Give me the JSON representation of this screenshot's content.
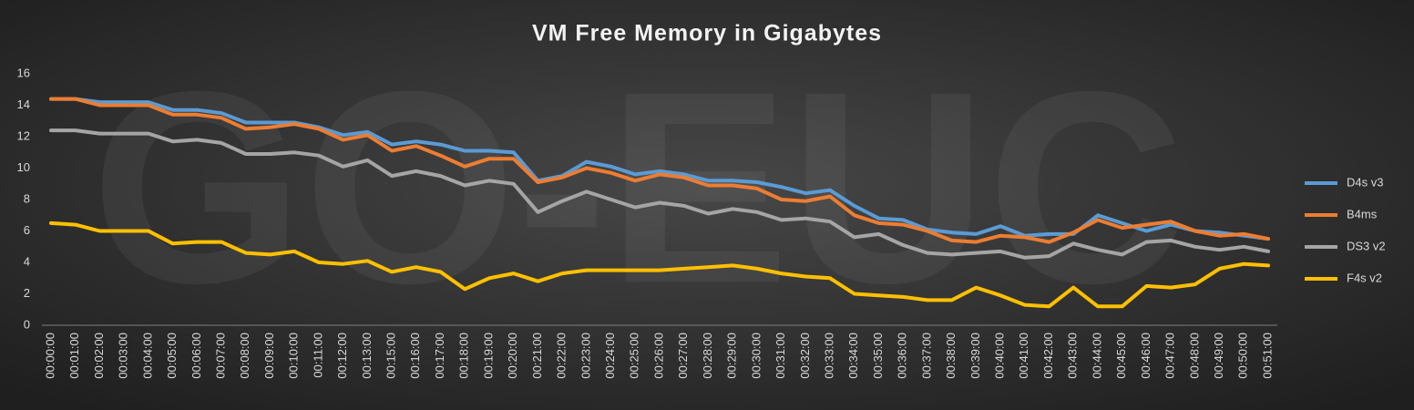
{
  "chart_data": {
    "type": "line",
    "title": "VM Free Memory in Gigabytes",
    "watermark": "GO-EUC",
    "categories": [
      "00:00:00",
      "00:01:00",
      "00:02:00",
      "00:03:00",
      "00:04:00",
      "00:05:00",
      "00:06:00",
      "00:07:00",
      "00:08:00",
      "00:09:00",
      "00:10:00",
      "00:11:00",
      "00:12:00",
      "00:13:00",
      "00:15:00",
      "00:16:00",
      "00:17:00",
      "00:18:00",
      "00:19:00",
      "00:20:00",
      "00:21:00",
      "00:22:00",
      "00:23:00",
      "00:24:00",
      "00:25:00",
      "00:26:00",
      "00:27:00",
      "00:28:00",
      "00:29:00",
      "00:30:00",
      "00:31:00",
      "00:32:00",
      "00:33:00",
      "00:34:00",
      "00:35:00",
      "00:36:00",
      "00:37:00",
      "00:38:00",
      "00:39:00",
      "00:40:00",
      "00:41:00",
      "00:42:00",
      "00:43:00",
      "00:44:00",
      "00:45:00",
      "00:46:00",
      "00:47:00",
      "00:48:00",
      "00:49:00",
      "00:50:00",
      "00:51:00"
    ],
    "series": [
      {
        "name": "D4s v3",
        "color": "#5b9bd5",
        "values": [
          14.4,
          14.4,
          14.2,
          14.2,
          14.2,
          13.7,
          13.7,
          13.5,
          12.9,
          12.9,
          12.9,
          12.6,
          12.1,
          12.3,
          11.5,
          11.7,
          11.5,
          11.1,
          11.1,
          11.0,
          9.2,
          9.5,
          10.4,
          10.1,
          9.6,
          9.8,
          9.6,
          9.2,
          9.2,
          9.1,
          8.8,
          8.4,
          8.6,
          7.6,
          6.8,
          6.7,
          6.1,
          5.9,
          5.8,
          6.3,
          5.7,
          5.8,
          5.8,
          7.0,
          6.5,
          6.0,
          6.4,
          6.0,
          5.9,
          5.7,
          5.5
        ]
      },
      {
        "name": "B4ms",
        "color": "#ed7d31",
        "values": [
          14.4,
          14.4,
          14.0,
          14.0,
          14.0,
          13.4,
          13.4,
          13.2,
          12.5,
          12.6,
          12.8,
          12.5,
          11.8,
          12.1,
          11.1,
          11.4,
          10.8,
          10.1,
          10.6,
          10.6,
          9.1,
          9.4,
          10.0,
          9.7,
          9.2,
          9.6,
          9.4,
          8.9,
          8.9,
          8.7,
          8.0,
          7.9,
          8.2,
          7.0,
          6.5,
          6.4,
          6.0,
          5.4,
          5.3,
          5.7,
          5.6,
          5.3,
          5.9,
          6.7,
          6.2,
          6.4,
          6.6,
          6.0,
          5.7,
          5.8,
          5.5
        ]
      },
      {
        "name": "DS3 v2",
        "color": "#a5a5a5",
        "values": [
          12.4,
          12.4,
          12.2,
          12.2,
          12.2,
          11.7,
          11.8,
          11.6,
          10.9,
          10.9,
          11.0,
          10.8,
          10.1,
          10.5,
          9.5,
          9.8,
          9.5,
          8.9,
          9.2,
          9.0,
          7.2,
          7.9,
          8.5,
          8.0,
          7.5,
          7.8,
          7.6,
          7.1,
          7.4,
          7.2,
          6.7,
          6.8,
          6.6,
          5.6,
          5.8,
          5.1,
          4.6,
          4.5,
          4.6,
          4.7,
          4.3,
          4.4,
          5.2,
          4.8,
          4.5,
          5.3,
          5.4,
          5.0,
          4.8,
          5.0,
          4.7
        ]
      },
      {
        "name": "F4s v2",
        "color": "#ffc000",
        "values": [
          6.5,
          6.4,
          6.0,
          6.0,
          6.0,
          5.2,
          5.3,
          5.3,
          4.6,
          4.5,
          4.7,
          4.0,
          3.9,
          4.1,
          3.4,
          3.7,
          3.4,
          2.3,
          3.0,
          3.3,
          2.8,
          3.3,
          3.5,
          3.5,
          3.5,
          3.5,
          3.6,
          3.7,
          3.8,
          3.6,
          3.3,
          3.1,
          3.0,
          2.0,
          1.9,
          1.8,
          1.6,
          1.6,
          2.4,
          1.9,
          1.3,
          1.2,
          2.4,
          1.2,
          1.2,
          2.5,
          2.4,
          2.6,
          3.6,
          3.9,
          3.8
        ]
      }
    ],
    "ylim": [
      0,
      16
    ],
    "yticks": [
      0,
      2,
      4,
      6,
      8,
      10,
      12,
      14,
      16
    ],
    "grid": false,
    "legend": "right"
  }
}
